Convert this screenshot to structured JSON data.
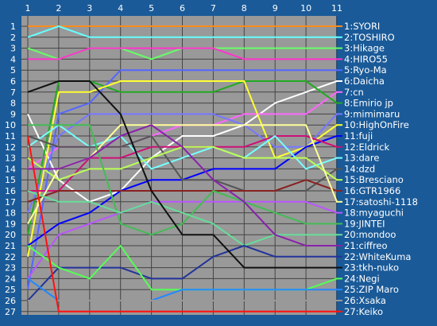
{
  "chart_data": {
    "type": "line",
    "title": "",
    "xlabel": "",
    "ylabel": "",
    "x": [
      1,
      2,
      3,
      4,
      5,
      6,
      7,
      8,
      9,
      10,
      11
    ],
    "ylim": [
      1,
      27
    ],
    "y_reversed": true,
    "y_ticks": [
      1,
      2,
      3,
      4,
      5,
      6,
      7,
      8,
      9,
      10,
      11,
      12,
      13,
      14,
      15,
      16,
      17,
      18,
      19,
      20,
      21,
      22,
      23,
      24,
      25,
      26,
      27
    ],
    "grid": true,
    "legend_position": "right",
    "plot_background": "#999999",
    "series": [
      {
        "name": "1:SYORI",
        "color": "#ff8c1a",
        "values": [
          1,
          1,
          1,
          1,
          1,
          1,
          1,
          1,
          1,
          1,
          1
        ]
      },
      {
        "name": "2:TOSHIRO",
        "color": "#66ffff",
        "values": [
          2,
          1,
          2,
          2,
          2,
          2,
          2,
          2,
          2,
          2,
          2
        ]
      },
      {
        "name": "3:Hikage",
        "color": "#66ff66",
        "values": [
          3,
          4,
          3,
          3,
          4,
          3,
          3,
          3,
          3,
          3,
          3
        ]
      },
      {
        "name": "4:HIRO55",
        "color": "#ff33cc",
        "values": [
          4,
          4,
          3,
          3,
          3,
          3,
          3,
          4,
          4,
          4,
          4
        ]
      },
      {
        "name": "5:Ryo-Ma",
        "color": "#5566ff",
        "values": [
          25,
          9,
          8,
          5,
          5,
          5,
          5,
          5,
          5,
          5,
          5
        ]
      },
      {
        "name": "6:Daicha",
        "color": "#ffffff",
        "values": [
          9,
          15,
          17,
          16,
          13,
          11,
          11,
          10,
          8,
          7,
          6
        ]
      },
      {
        "name": "7:cn",
        "color": "#ff66ff",
        "values": [
          14,
          12,
          12,
          12,
          11,
          10,
          10,
          9,
          9,
          9,
          7
        ]
      },
      {
        "name": "8:Emirio jp",
        "color": "#22aa22",
        "values": [
          20,
          6,
          6,
          7,
          7,
          7,
          7,
          6,
          6,
          6,
          8
        ]
      },
      {
        "name": "9:mimimaru",
        "color": "#7777ff",
        "values": [
          18,
          11,
          9,
          9,
          9,
          9,
          9,
          10,
          12,
          12,
          9
        ]
      },
      {
        "name": "10:HighOnFire",
        "color": "#ffff33",
        "values": [
          22,
          7,
          7,
          6,
          6,
          6,
          6,
          6,
          13,
          12,
          10
        ]
      },
      {
        "name": "11:fuji",
        "color": "#0000ff",
        "values": [
          21,
          19,
          18,
          16,
          15,
          15,
          14,
          14,
          14,
          12,
          11
        ]
      },
      {
        "name": "12:Eldrick",
        "color": "#cc1177",
        "values": [
          16,
          16,
          13,
          13,
          12,
          12,
          12,
          12,
          11,
          11,
          12
        ]
      },
      {
        "name": "13:dare",
        "color": "#77ffff",
        "values": [
          12,
          10,
          12,
          11,
          14,
          13,
          12,
          13,
          11,
          14,
          13
        ]
      },
      {
        "name": "14:dzd",
        "color": "#555555",
        "values": [
          11,
          12,
          12,
          12,
          11,
          15,
          15,
          16,
          16,
          16,
          14
        ]
      },
      {
        "name": "15:Bresciano",
        "color": "#bbff55",
        "values": [
          13,
          15,
          14,
          14,
          13,
          12,
          12,
          13,
          13,
          13,
          15
        ]
      },
      {
        "name": "16:GTR1966",
        "color": "#882222",
        "values": [
          17,
          16,
          16,
          16,
          16,
          16,
          16,
          16,
          16,
          15,
          16
        ]
      },
      {
        "name": "17:satoshi-1118",
        "color": "#ffff99",
        "values": [
          19,
          14,
          13,
          10,
          10,
          10,
          10,
          10,
          10,
          10,
          17
        ]
      },
      {
        "name": "18:myaguchi",
        "color": "#bb55ff",
        "values": [
          24,
          20,
          19,
          18,
          17,
          17,
          17,
          17,
          17,
          17,
          18
        ]
      },
      {
        "name": "19:JINTEI",
        "color": "#44bb55",
        "values": [
          10,
          10,
          10,
          19,
          20,
          19,
          16,
          17,
          18,
          19,
          19
        ]
      },
      {
        "name": "20:mondoo",
        "color": "#66dd99",
        "values": [
          16,
          17,
          17,
          18,
          17,
          18,
          19,
          21,
          20,
          20,
          20
        ]
      },
      {
        "name": "21:ciffreo",
        "color": "#8822aa",
        "values": [
          14,
          14,
          13,
          11,
          10,
          12,
          15,
          17,
          20,
          21,
          21
        ]
      },
      {
        "name": "22:WhiteKuma",
        "color": "#223399",
        "values": [
          26,
          23,
          23,
          23,
          24,
          24,
          22,
          21,
          22,
          22,
          22
        ]
      },
      {
        "name": "23:tkh-nuko",
        "color": "#111111",
        "values": [
          7,
          6,
          6,
          9,
          16,
          20,
          20,
          23,
          23,
          23,
          23
        ]
      },
      {
        "name": "24:Negi",
        "color": "#55ff55",
        "values": [
          21,
          23,
          24,
          21,
          25,
          25,
          25,
          25,
          25,
          25,
          24
        ]
      },
      {
        "name": "25:ZIP Maro",
        "color": "#2288ff",
        "values": [
          24,
          26,
          26,
          26,
          26,
          25,
          25,
          25,
          25,
          25,
          25
        ]
      },
      {
        "name": "26:Xsaka",
        "color": "#999999",
        "values": [
          26,
          26,
          26,
          26,
          26,
          26,
          26,
          26,
          26,
          26,
          26
        ]
      },
      {
        "name": "27:Keiko",
        "color": "#ff1111",
        "values": [
          11,
          27,
          27,
          27,
          27,
          27,
          27,
          27,
          27,
          27,
          27
        ]
      }
    ]
  }
}
